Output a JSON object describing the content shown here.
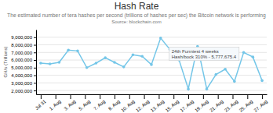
{
  "chart_data": {
    "type": "line",
    "title": "Hash Rate",
    "subtitle": "The estimated number of tera hashes per second (trillions of hashes per sec) the Bitcoin network is performing",
    "source": "Source: blockchain.com",
    "ylabel": "GH/s (Trillions)",
    "x": [
      0,
      1,
      2,
      3,
      4,
      5,
      6,
      7,
      8,
      9,
      10,
      11,
      12,
      13,
      14,
      15,
      16,
      17,
      18,
      19,
      20,
      21,
      22,
      23,
      24
    ],
    "values": [
      5600000,
      5500000,
      5700000,
      7300000,
      7200000,
      5000000,
      5600000,
      6300000,
      5700000,
      5100000,
      6700000,
      6500000,
      5400000,
      8900000,
      7400000,
      6000000,
      2200000,
      7800000,
      2200000,
      4100000,
      4800000,
      3200000,
      7000000,
      6400000,
      3300000
    ],
    "color": "#74c6e8",
    "marker": "circle",
    "xlim": [
      -0.5,
      24.5
    ],
    "xticks": [
      {
        "value": 0,
        "label": "Jul 31"
      },
      {
        "value": 1.6,
        "label": "1. Aug"
      },
      {
        "value": 3.2,
        "label": "3. Aug"
      },
      {
        "value": 4.8,
        "label": "5. Aug"
      },
      {
        "value": 6.4,
        "label": "7. Aug"
      },
      {
        "value": 8.0,
        "label": "8. Aug"
      },
      {
        "value": 9.6,
        "label": "10. Aug"
      },
      {
        "value": 11.2,
        "label": "12. Aug"
      },
      {
        "value": 12.8,
        "label": "13. Aug"
      },
      {
        "value": 14.4,
        "label": "15. Aug"
      },
      {
        "value": 16.0,
        "label": "17. Aug"
      },
      {
        "value": 17.6,
        "label": "19. Aug"
      },
      {
        "value": 19.2,
        "label": "21. Aug"
      },
      {
        "value": 20.8,
        "label": "23. Aug"
      },
      {
        "value": 22.4,
        "label": "25. Aug"
      },
      {
        "value": 24.0,
        "label": "27. Aug"
      }
    ],
    "ylim": [
      1500000,
      10000000
    ],
    "yticks": [
      {
        "value": 2000000,
        "label": "2,000,000"
      },
      {
        "value": 3000000,
        "label": "3,000,000"
      },
      {
        "value": 4000000,
        "label": "4,000,000"
      },
      {
        "value": 5000000,
        "label": "5,000,000"
      },
      {
        "value": 6000000,
        "label": "6,000,000"
      },
      {
        "value": 7000000,
        "label": "7,000,000"
      },
      {
        "value": 8000000,
        "label": "8,000,000"
      },
      {
        "value": 9000000,
        "label": "9,000,000"
      }
    ],
    "grid": true,
    "annotations": [
      {
        "text": "24th Funniest 4 weeks\nHash/bock 310% - 5,777,675.4",
        "x": 13,
        "y": 8900000
      }
    ]
  }
}
